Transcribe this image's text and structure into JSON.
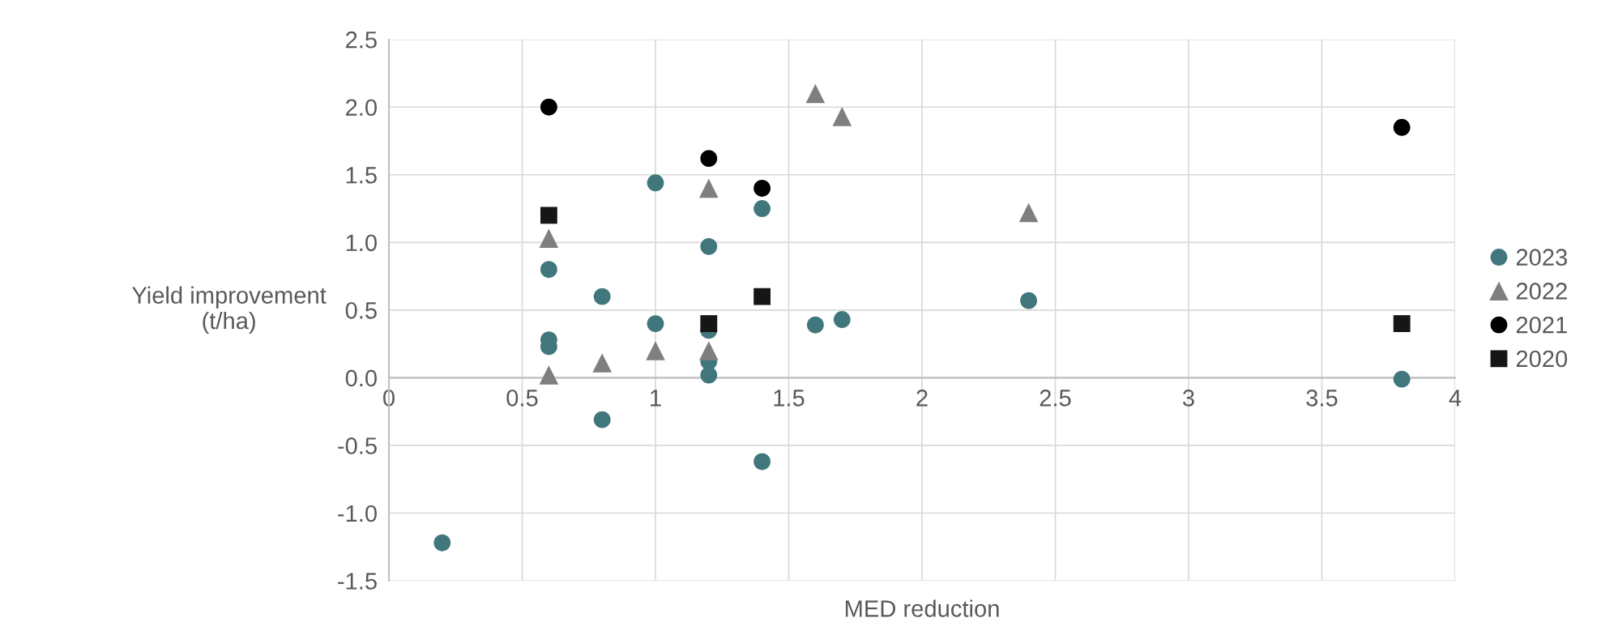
{
  "chart_data": {
    "type": "scatter",
    "xlabel": "MED reduction",
    "ylabel": "Yield improvement\n(t/ha)",
    "xlim": [
      0,
      4
    ],
    "ylim": [
      -1.5,
      2.5
    ],
    "xticks": [
      0,
      0.5,
      1,
      1.5,
      2,
      2.5,
      3,
      3.5,
      4
    ],
    "yticks": [
      {
        "value": -1.5,
        "label": "-1.5"
      },
      {
        "value": -1,
        "label": "-1.0"
      },
      {
        "value": -0.5,
        "label": "-0.5"
      },
      {
        "value": 0,
        "label": "0.0"
      },
      {
        "value": 0.5,
        "label": "0.5"
      },
      {
        "value": 1,
        "label": "1.0"
      },
      {
        "value": 1.5,
        "label": "1.5"
      },
      {
        "value": 2,
        "label": "2.0"
      },
      {
        "value": 2.5,
        "label": "2.5"
      }
    ],
    "grid": true,
    "legend": "right",
    "series": [
      {
        "name": "2023",
        "color": "#41777c",
        "marker": "circle",
        "x": [
          1.0,
          1.4,
          1.2,
          0.6,
          0.8,
          1.0,
          1.2,
          0.6,
          0.6,
          1.2,
          1.2,
          1.6,
          1.7,
          2.4,
          3.8,
          0.8,
          1.4,
          0.2
        ],
        "values": [
          1.44,
          1.25,
          0.97,
          0.8,
          0.6,
          0.4,
          0.35,
          0.28,
          0.23,
          0.12,
          0.02,
          0.39,
          0.43,
          0.57,
          -0.01,
          -0.31,
          -0.62,
          -1.22
        ]
      },
      {
        "name": "2022",
        "color": "#7f7f7f",
        "marker": "triangle",
        "x": [
          1.6,
          1.7,
          1.2,
          0.6,
          0.8,
          1.0,
          1.2,
          0.6,
          2.4
        ],
        "values": [
          2.1,
          1.93,
          1.4,
          1.03,
          0.11,
          0.2,
          0.2,
          0.02,
          1.22
        ]
      },
      {
        "name": "2021",
        "color": "#000000",
        "marker": "circle",
        "x": [
          0.6,
          1.2,
          1.4,
          3.8
        ],
        "values": [
          2.0,
          1.62,
          1.4,
          1.85
        ]
      },
      {
        "name": "2020",
        "color": "#161616",
        "marker": "square",
        "x": [
          0.6,
          1.4,
          1.2,
          3.8
        ],
        "values": [
          1.2,
          0.6,
          0.4,
          0.4
        ]
      }
    ]
  }
}
